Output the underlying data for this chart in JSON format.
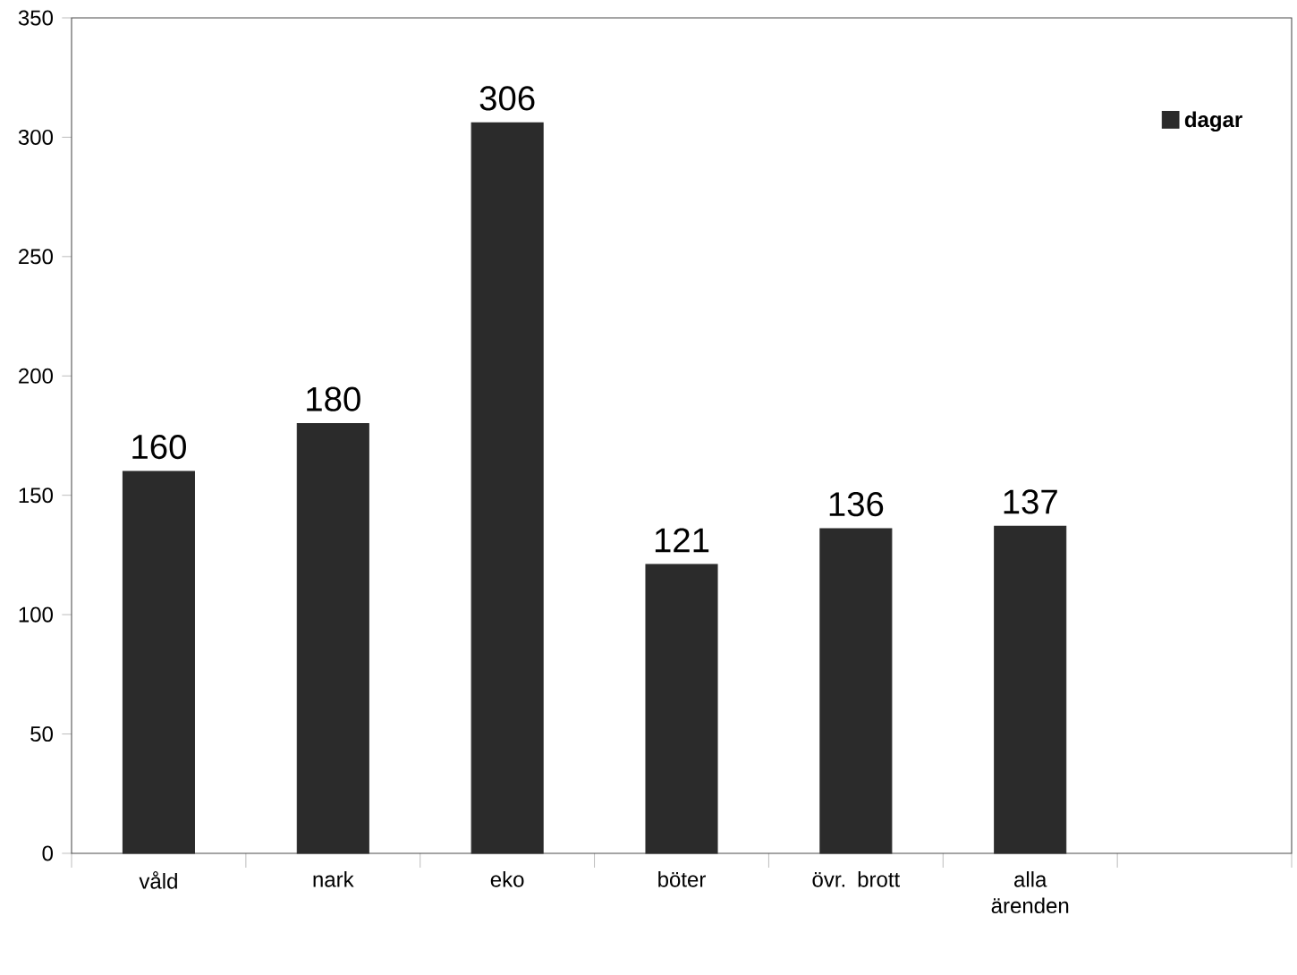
{
  "chart_data": {
    "type": "bar",
    "categories": [
      "våld",
      "nark",
      "eko",
      "böter",
      "övr. brott",
      "alla ärenden",
      null
    ],
    "series": [
      {
        "name": "dagar",
        "color": "#2b2b2b",
        "values": [
          160,
          180,
          306,
          121,
          136,
          137,
          null
        ]
      }
    ],
    "ylim": [
      0,
      350
    ],
    "yticks": [
      0,
      50,
      100,
      150,
      200,
      250,
      300,
      350
    ],
    "data_labels": true,
    "legend": "top right",
    "grid": false
  }
}
